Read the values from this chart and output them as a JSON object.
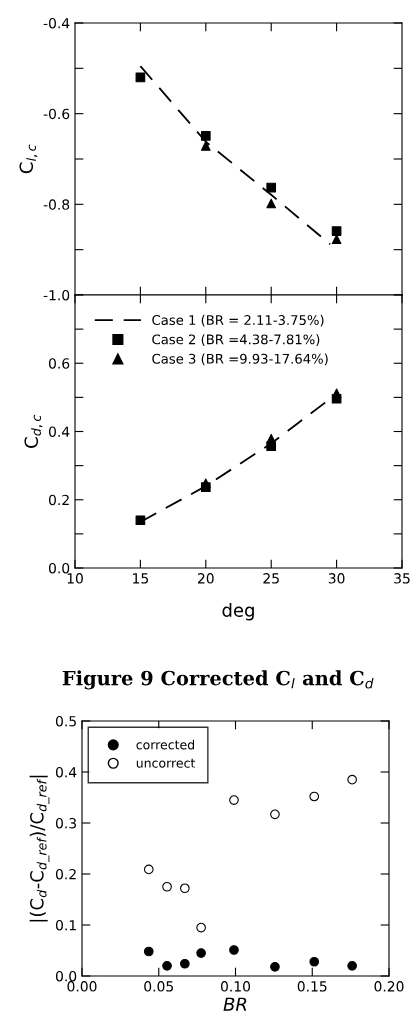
{
  "chart_data": [
    {
      "type": "scatter",
      "ylabel": "C$_{l,c}$",
      "x": [
        15,
        20,
        25,
        30
      ],
      "xlim": [
        10,
        35
      ],
      "xticks": [
        {
          "value": 15,
          "label": null
        },
        {
          "value": 20,
          "label": null
        },
        {
          "value": 25,
          "label": null
        },
        {
          "value": 30,
          "label": null
        }
      ],
      "ylim": [
        -1.0,
        -0.4
      ],
      "yticks": [
        {
          "value": -1.0,
          "label": "-1.0"
        },
        {
          "value": -0.9,
          "label": null
        },
        -0.8,
        {
          "value": -0.7,
          "label": null
        },
        -0.6,
        {
          "value": -0.5,
          "label": null
        },
        -0.4
      ],
      "tick_labels": "y",
      "grid": false,
      "legend": false,
      "series": [
        {
          "type": "line",
          "color": "#000000",
          "x": [
            15,
            20,
            25,
            29.5
          ],
          "values": [
            -0.495,
            -0.662,
            -0.779,
            -0.888
          ],
          "marker": "none",
          "line_style": "dashed"
        },
        {
          "color": "#000000",
          "values": [
            -0.52,
            -0.649,
            -0.763,
            -0.859
          ],
          "marker": "square"
        },
        {
          "color": "#000000",
          "values": [
            null,
            -0.671,
            -0.798,
            -0.877
          ],
          "marker": "triangle"
        }
      ]
    },
    {
      "type": "scatter",
      "ylabel": "C$_{d,c}$",
      "xlabel": "deg",
      "x": [
        15,
        20,
        25,
        30
      ],
      "xlim": [
        10,
        35
      ],
      "xticks": [
        10,
        15,
        20,
        25,
        30,
        35
      ],
      "ylim": [
        0.0,
        0.8
      ],
      "yticks": [
        {
          "value": 0.0,
          "label": "0.0"
        },
        {
          "value": 0.1,
          "label": null
        },
        0.2,
        {
          "value": 0.3,
          "label": null
        },
        0.4,
        {
          "value": 0.5,
          "label": null
        },
        0.6,
        {
          "value": 0.7,
          "label": null
        },
        {
          "value": 0.8,
          "label": null
        }
      ],
      "grid": false,
      "legend": "top left",
      "annotations": [
        "Figure 9 Corrected C$_{l}$ and C$_{d}$"
      ],
      "series": [
        {
          "name": "Case 1 (BR = 2.11-3.75%)",
          "type": "line",
          "color": "#000000",
          "values": [
            0.135,
            0.24,
            0.365,
            0.51
          ],
          "marker": "none",
          "line_style": "dashed"
        },
        {
          "name": "Case 2 (BR =4.38-7.81%)",
          "color": "#000000",
          "values": [
            0.14,
            0.237,
            0.357,
            0.496
          ],
          "marker": "square"
        },
        {
          "name": "Case 3 (BR =9.93-17.64%)",
          "color": "#000000",
          "values": [
            null,
            0.248,
            0.379,
            0.512
          ],
          "marker": "triangle"
        }
      ]
    },
    {
      "type": "scatter",
      "ylabel": "|(C$_{d}$-C$_{d_ref}$)/C$_{d_ref}$|",
      "xlabel": "BR",
      "x": [
        0.0435,
        0.0554,
        0.067,
        0.0776,
        0.099,
        0.1257,
        0.1513,
        0.176
      ],
      "xlim": [
        0.0,
        0.2
      ],
      "xticks": [
        {
          "value": 0.0,
          "label": "0.00"
        },
        {
          "value": 0.05,
          "label": "0.05"
        },
        {
          "value": 0.1,
          "label": "0.10"
        },
        {
          "value": 0.15,
          "label": "0.15"
        },
        {
          "value": 0.2,
          "label": "0.20"
        }
      ],
      "ylim": [
        0.0,
        0.5
      ],
      "yticks": [
        {
          "value": 0.0,
          "label": "0.0"
        },
        0.1,
        0.2,
        0.3,
        0.4,
        0.5
      ],
      "grid": false,
      "legend": "top left",
      "series": [
        {
          "name": "corrected",
          "color": "#000000",
          "values": [
            0.048,
            0.02,
            0.024,
            0.045,
            0.051,
            0.018,
            0.028,
            0.02
          ],
          "marker": "circle"
        },
        {
          "name": "uncorrect",
          "color": "#ffffff",
          "values": [
            0.209,
            0.175,
            0.172,
            0.095,
            0.345,
            0.317,
            0.352,
            0.385
          ],
          "marker": "circle"
        }
      ]
    }
  ]
}
